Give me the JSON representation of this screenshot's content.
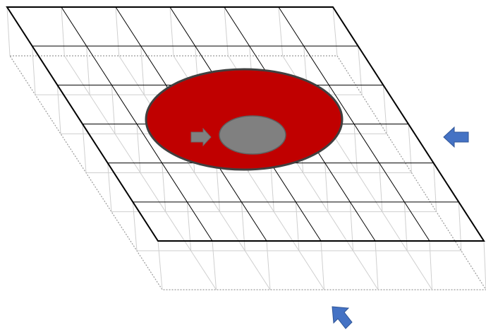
{
  "diagram": {
    "description_visible_text": "",
    "grid": {
      "columns": 6,
      "rows": 6
    },
    "shapes": {
      "outer_ellipse": {
        "fill": "#c00000",
        "stroke": "#404040"
      },
      "inner_ellipse": {
        "fill": "#808080",
        "stroke": "#606060"
      },
      "inner_arrow": {
        "fill": "#808080",
        "stroke": "#606060",
        "icon": "arrow-right-icon"
      }
    },
    "arrows": [
      {
        "name": "side-arrow",
        "icon": "arrow-left-icon",
        "color": "#4472c4"
      },
      {
        "name": "bottom-arrow",
        "icon": "arrow-up-left-icon",
        "color": "#4472c4"
      }
    ],
    "colors": {
      "top_grid": "#000000",
      "lower_grid": "#cfcfcf",
      "lower_frame": "#9a9a9a"
    }
  }
}
